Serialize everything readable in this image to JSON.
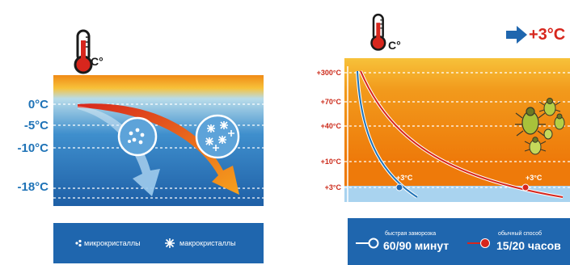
{
  "left_panel": {
    "thermometer_unit": "C°",
    "temps": [
      "0°C",
      "-5°C",
      "-10°C",
      "-18°C"
    ],
    "legend": {
      "micro": "микрокристаллы",
      "macro": "макрокристаллы"
    }
  },
  "right_panel": {
    "thermometer_unit": "C°",
    "target_temp": "+3°C",
    "temps": [
      "+300°C",
      "+70°C",
      "+40°C",
      "+10°C",
      "+3°C"
    ],
    "curve_markers": [
      "+3°C",
      "+3°C"
    ],
    "legend": {
      "fast_label": "быстрая заморозка",
      "fast_time": "60/90 минут",
      "slow_label": "обычный способ",
      "slow_time": "15/20 часов"
    }
  },
  "colors": {
    "blue": "#1f73b7",
    "orange": "#f07d00",
    "red": "#d7261d"
  }
}
